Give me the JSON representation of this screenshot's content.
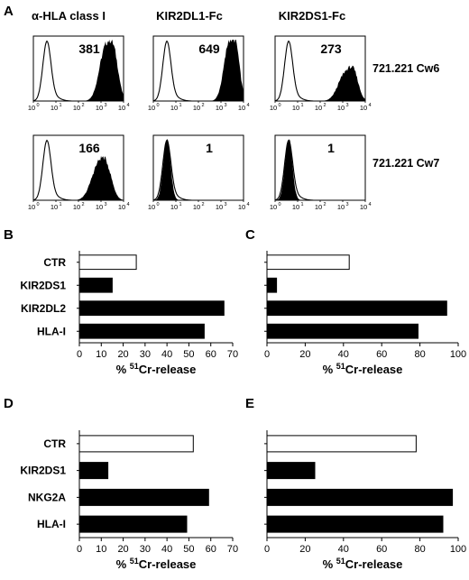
{
  "colors": {
    "filled": "#000000",
    "open": "#ffffff",
    "stroke": "#000000"
  },
  "panels": {
    "A": "A",
    "B": "B",
    "C": "C",
    "D": "D",
    "E": "E"
  },
  "flow": {
    "columns": [
      "α-HLA class I",
      "KIR2DL1-Fc",
      "KIR2DS1-Fc"
    ],
    "rows": [
      "721.221 Cw6",
      "721.221 Cw7"
    ],
    "mfi": [
      [
        "381",
        "649",
        "273"
      ],
      [
        "166",
        "1",
        "1"
      ]
    ],
    "axis_base": "10",
    "axis_exponents": [
      "0",
      "1",
      "2",
      "3",
      "4"
    ]
  },
  "chart_data": [
    {
      "panel": "B",
      "type": "bar",
      "orientation": "horizontal",
      "categories": [
        "CTR",
        "KIR2DS1",
        "KIR2DL2",
        "HLA-I"
      ],
      "values": [
        26,
        15,
        66,
        57
      ],
      "fill": [
        "white",
        "black",
        "black",
        "black"
      ],
      "xlabel_prefix": "% ",
      "xlabel_sup": "51",
      "xlabel_suffix": "Cr-release",
      "xlim": [
        0,
        70
      ],
      "xticks": [
        0,
        10,
        20,
        30,
        40,
        50,
        60,
        70
      ],
      "show_categories": true
    },
    {
      "panel": "C",
      "type": "bar",
      "orientation": "horizontal",
      "categories": [
        "CTR",
        "KIR2DS1",
        "KIR2DL2",
        "HLA-I"
      ],
      "values": [
        43,
        5,
        94,
        79
      ],
      "fill": [
        "white",
        "black",
        "black",
        "black"
      ],
      "xlabel_prefix": "% ",
      "xlabel_sup": "51",
      "xlabel_suffix": "Cr-release",
      "xlim": [
        0,
        100
      ],
      "xticks": [
        0,
        20,
        40,
        60,
        80,
        100
      ],
      "show_categories": false
    },
    {
      "panel": "D",
      "type": "bar",
      "orientation": "horizontal",
      "categories": [
        "CTR",
        "KIR2DS1",
        "NKG2A",
        "HLA-I"
      ],
      "values": [
        52,
        13,
        59,
        49
      ],
      "fill": [
        "white",
        "black",
        "black",
        "black"
      ],
      "xlabel_prefix": "% ",
      "xlabel_sup": "51",
      "xlabel_suffix": "Cr-release",
      "xlim": [
        0,
        70
      ],
      "xticks": [
        0,
        10,
        20,
        30,
        40,
        50,
        60,
        70
      ],
      "show_categories": true
    },
    {
      "panel": "E",
      "type": "bar",
      "orientation": "horizontal",
      "categories": [
        "CTR",
        "KIR2DS1",
        "NKG2A",
        "HLA-I"
      ],
      "values": [
        78,
        25,
        97,
        92
      ],
      "fill": [
        "white",
        "black",
        "black",
        "black"
      ],
      "xlabel_prefix": "% ",
      "xlabel_sup": "51",
      "xlabel_suffix": "Cr-release",
      "xlim": [
        0,
        100
      ],
      "xticks": [
        0,
        20,
        40,
        60,
        80,
        100
      ],
      "show_categories": false
    }
  ]
}
